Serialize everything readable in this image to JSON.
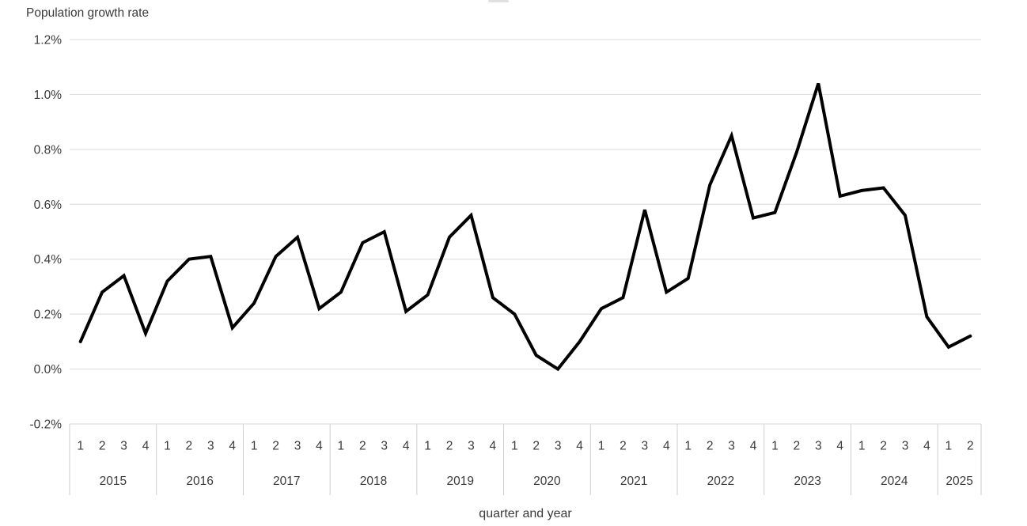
{
  "chart_data": {
    "type": "line",
    "y_axis": {
      "label": "Population growth rate",
      "unit": "%",
      "min": -0.2,
      "max": 1.2,
      "step": 0.2,
      "grid": true,
      "ticks": [
        {
          "label": "1.2%",
          "value": 1.2
        },
        {
          "label": "1.0%",
          "value": 1.0
        },
        {
          "label": "0.8%",
          "value": 0.8
        },
        {
          "label": "0.6%",
          "value": 0.6
        },
        {
          "label": "0.4%",
          "value": 0.4
        },
        {
          "label": "0.2%",
          "value": 0.2
        },
        {
          "label": "0.0%",
          "value": 0.0
        },
        {
          "label": "-0.2%",
          "value": -0.2
        }
      ]
    },
    "x_axis": {
      "label": "quarter and year",
      "groups": [
        {
          "year": "2015",
          "quarters": [
            "1",
            "2",
            "3",
            "4"
          ]
        },
        {
          "year": "2016",
          "quarters": [
            "1",
            "2",
            "3",
            "4"
          ]
        },
        {
          "year": "2017",
          "quarters": [
            "1",
            "2",
            "3",
            "4"
          ]
        },
        {
          "year": "2018",
          "quarters": [
            "1",
            "2",
            "3",
            "4"
          ]
        },
        {
          "year": "2019",
          "quarters": [
            "1",
            "2",
            "3",
            "4"
          ]
        },
        {
          "year": "2020",
          "quarters": [
            "1",
            "2",
            "3",
            "4"
          ]
        },
        {
          "year": "2021",
          "quarters": [
            "1",
            "2",
            "3",
            "4"
          ]
        },
        {
          "year": "2022",
          "quarters": [
            "1",
            "2",
            "3",
            "4"
          ]
        },
        {
          "year": "2023",
          "quarters": [
            "1",
            "2",
            "3",
            "4"
          ]
        },
        {
          "year": "2024",
          "quarters": [
            "1",
            "2",
            "3",
            "4"
          ]
        },
        {
          "year": "2025",
          "quarters": [
            "1",
            "2"
          ]
        }
      ]
    },
    "series": [
      {
        "name": "Population growth rate",
        "color": "#000000",
        "values": [
          0.1,
          0.28,
          0.34,
          0.13,
          0.32,
          0.4,
          0.41,
          0.15,
          0.24,
          0.41,
          0.48,
          0.22,
          0.28,
          0.46,
          0.5,
          0.21,
          0.27,
          0.48,
          0.56,
          0.26,
          0.2,
          0.05,
          0.0,
          0.1,
          0.22,
          0.26,
          0.58,
          0.28,
          0.33,
          0.67,
          0.85,
          0.55,
          0.57,
          0.79,
          1.04,
          0.63,
          0.65,
          0.66,
          0.56,
          0.19,
          0.08,
          0.12
        ]
      }
    ],
    "legend": "none"
  },
  "colors": {
    "background": "#ffffff",
    "series_line": "#000000",
    "gridline": "#d9d9d9",
    "table_border": "#cfcfcf",
    "axis_text": "#3a3a3a",
    "artifact": "#c9c9c9"
  }
}
